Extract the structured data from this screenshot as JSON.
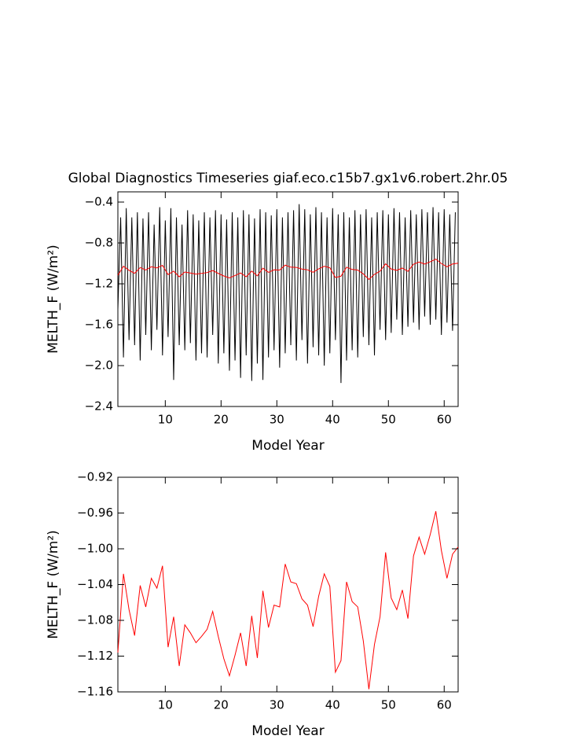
{
  "chart_data": [
    {
      "type": "line",
      "title": "Global Diagnostics Timeseries giaf.eco.c15b7.gx1v6.robert.2hr.05",
      "x_label": "Model Year",
      "y_label": "MELTH_F (W/m²)",
      "xlim": [
        1.5,
        62.5
      ],
      "ylim": [
        -2.4,
        -0.3
      ],
      "xticks": [
        10,
        20,
        30,
        40,
        50,
        60
      ],
      "yticks": [
        {
          "value": -2.4,
          "label": "−2.4"
        },
        {
          "value": -2.0,
          "label": "−2.0"
        },
        {
          "value": -1.6,
          "label": "−1.6"
        },
        {
          "value": -1.2,
          "label": "−1.2"
        },
        {
          "value": -0.8,
          "label": "−0.8"
        },
        {
          "value": -0.4,
          "label": "−0.4"
        }
      ],
      "series": [
        {
          "color": "#000000",
          "x": [
            1.5,
            2,
            2.5,
            3,
            3.5,
            4,
            4.5,
            5,
            5.5,
            6,
            6.5,
            7,
            7.5,
            8,
            8.5,
            9,
            9.5,
            10,
            10.5,
            11,
            11.5,
            12,
            12.5,
            13,
            13.5,
            14,
            14.5,
            15,
            15.5,
            16,
            16.5,
            17,
            17.5,
            18,
            18.5,
            19,
            19.5,
            20,
            20.5,
            21,
            21.5,
            22,
            22.5,
            23,
            23.5,
            24,
            24.5,
            25,
            25.5,
            26,
            26.5,
            27,
            27.5,
            28,
            28.5,
            29,
            29.5,
            30,
            30.5,
            31,
            31.5,
            32,
            32.5,
            33,
            33.5,
            34,
            34.5,
            35,
            35.5,
            36,
            36.5,
            37,
            37.5,
            38,
            38.5,
            39,
            39.5,
            40,
            40.5,
            41,
            41.5,
            42,
            42.5,
            43,
            43.5,
            44,
            44.5,
            45,
            45.5,
            46,
            46.5,
            47,
            47.5,
            48,
            48.5,
            49,
            49.5,
            50,
            50.5,
            51,
            51.5,
            52,
            52.5,
            53,
            53.5,
            54,
            54.5,
            55,
            55.5,
            56,
            56.5,
            57,
            57.5,
            58,
            58.5,
            59,
            59.5,
            60,
            60.5,
            61,
            61.5,
            62
          ],
          "values": [
            -1.45,
            -0.55,
            -1.92,
            -0.46,
            -1.75,
            -0.55,
            -1.8,
            -0.5,
            -1.95,
            -0.56,
            -1.7,
            -0.5,
            -1.85,
            -0.62,
            -1.65,
            -0.45,
            -1.9,
            -0.58,
            -1.72,
            -0.46,
            -2.14,
            -0.55,
            -1.8,
            -0.62,
            -1.85,
            -0.48,
            -1.78,
            -0.52,
            -1.95,
            -0.58,
            -1.88,
            -0.5,
            -1.92,
            -0.55,
            -1.7,
            -0.48,
            -1.98,
            -0.52,
            -1.88,
            -0.57,
            -2.05,
            -0.5,
            -1.95,
            -0.55,
            -2.12,
            -0.48,
            -1.9,
            -0.52,
            -2.15,
            -0.56,
            -1.98,
            -0.47,
            -2.14,
            -0.5,
            -1.92,
            -0.53,
            -1.85,
            -0.47,
            -2.02,
            -0.55,
            -1.88,
            -0.5,
            -1.8,
            -0.48,
            -1.95,
            -0.42,
            -1.75,
            -0.47,
            -1.98,
            -0.52,
            -1.82,
            -0.45,
            -1.9,
            -0.5,
            -2.0,
            -0.55,
            -1.88,
            -0.46,
            -1.75,
            -0.52,
            -2.17,
            -0.5,
            -1.95,
            -0.55,
            -1.85,
            -0.48,
            -1.92,
            -0.52,
            -1.72,
            -0.47,
            -1.8,
            -0.55,
            -1.9,
            -0.5,
            -1.65,
            -0.48,
            -1.75,
            -0.52,
            -1.68,
            -0.46,
            -1.55,
            -0.5,
            -1.7,
            -0.55,
            -1.62,
            -0.48,
            -1.58,
            -0.52,
            -1.65,
            -0.47,
            -1.52,
            -0.5,
            -1.6,
            -0.45,
            -1.55,
            -0.5,
            -1.7,
            -0.47,
            -1.58,
            -0.52,
            -1.66,
            -0.5
          ]
        },
        {
          "color": "#ff0000",
          "x": [
            1.5,
            2.5,
            3.5,
            4.5,
            5.5,
            6.5,
            7.5,
            8.5,
            9.5,
            10.5,
            11.5,
            12.5,
            13.5,
            14.5,
            15.5,
            16.5,
            17.5,
            18.5,
            19.5,
            20.5,
            21.5,
            22.5,
            23.5,
            24.5,
            25.5,
            26.5,
            27.5,
            28.5,
            29.5,
            30.5,
            31.5,
            32.5,
            33.5,
            34.5,
            35.5,
            36.5,
            37.5,
            38.5,
            39.5,
            40.5,
            41.5,
            42.5,
            43.5,
            44.5,
            45.5,
            46.5,
            47.5,
            48.5,
            49.5,
            50.5,
            51.5,
            52.5,
            53.5,
            54.5,
            55.5,
            56.5,
            57.5,
            58.5,
            59.5,
            60.5,
            61.5,
            62.5
          ],
          "values": [
            -1.116,
            -1.028,
            -1.068,
            -1.097,
            -1.041,
            -1.065,
            -1.033,
            -1.044,
            -1.019,
            -1.11,
            -1.076,
            -1.131,
            -1.085,
            -1.094,
            -1.105,
            -1.098,
            -1.09,
            -1.07,
            -1.098,
            -1.123,
            -1.142,
            -1.119,
            -1.094,
            -1.131,
            -1.075,
            -1.122,
            -1.047,
            -1.088,
            -1.063,
            -1.065,
            -1.017,
            -1.037,
            -1.039,
            -1.056,
            -1.063,
            -1.087,
            -1.053,
            -1.028,
            -1.042,
            -1.138,
            -1.125,
            -1.037,
            -1.059,
            -1.065,
            -1.103,
            -1.157,
            -1.107,
            -1.076,
            -1.004,
            -1.055,
            -1.068,
            -1.046,
            -1.078,
            -1.008,
            -0.987,
            -1.006,
            -0.984,
            -0.958,
            -1.002,
            -1.033,
            -1.006,
            -0.998
          ]
        }
      ]
    },
    {
      "type": "line",
      "x_label": "Model Year",
      "y_label": "MELTH_F (W/m²)",
      "xlim": [
        1.5,
        62.5
      ],
      "ylim": [
        -1.16,
        -0.92
      ],
      "xticks": [
        10,
        20,
        30,
        40,
        50,
        60
      ],
      "yticks": [
        {
          "value": -1.16,
          "label": "−1.16"
        },
        {
          "value": -1.12,
          "label": "−1.12"
        },
        {
          "value": -1.08,
          "label": "−1.08"
        },
        {
          "value": -1.04,
          "label": "−1.04"
        },
        {
          "value": -1.0,
          "label": "−1.00"
        },
        {
          "value": -0.96,
          "label": "−0.96"
        },
        {
          "value": -0.92,
          "label": "−0.92"
        }
      ],
      "series": [
        {
          "color": "#ff0000",
          "x": [
            1.5,
            2.5,
            3.5,
            4.5,
            5.5,
            6.5,
            7.5,
            8.5,
            9.5,
            10.5,
            11.5,
            12.5,
            13.5,
            14.5,
            15.5,
            16.5,
            17.5,
            18.5,
            19.5,
            20.5,
            21.5,
            22.5,
            23.5,
            24.5,
            25.5,
            26.5,
            27.5,
            28.5,
            29.5,
            30.5,
            31.5,
            32.5,
            33.5,
            34.5,
            35.5,
            36.5,
            37.5,
            38.5,
            39.5,
            40.5,
            41.5,
            42.5,
            43.5,
            44.5,
            45.5,
            46.5,
            47.5,
            48.5,
            49.5,
            50.5,
            51.5,
            52.5,
            53.5,
            54.5,
            55.5,
            56.5,
            57.5,
            58.5,
            59.5,
            60.5,
            61.5,
            62.5
          ],
          "values": [
            -1.116,
            -1.028,
            -1.068,
            -1.097,
            -1.041,
            -1.065,
            -1.033,
            -1.044,
            -1.019,
            -1.11,
            -1.076,
            -1.131,
            -1.085,
            -1.094,
            -1.105,
            -1.098,
            -1.09,
            -1.07,
            -1.098,
            -1.123,
            -1.142,
            -1.119,
            -1.094,
            -1.131,
            -1.075,
            -1.122,
            -1.047,
            -1.088,
            -1.063,
            -1.065,
            -1.017,
            -1.037,
            -1.039,
            -1.056,
            -1.063,
            -1.087,
            -1.053,
            -1.028,
            -1.042,
            -1.138,
            -1.125,
            -1.037,
            -1.059,
            -1.065,
            -1.103,
            -1.157,
            -1.107,
            -1.076,
            -1.004,
            -1.055,
            -1.068,
            -1.046,
            -1.078,
            -1.008,
            -0.987,
            -1.006,
            -0.984,
            -0.958,
            -1.002,
            -1.033,
            -1.006,
            -0.998
          ]
        }
      ]
    }
  ]
}
